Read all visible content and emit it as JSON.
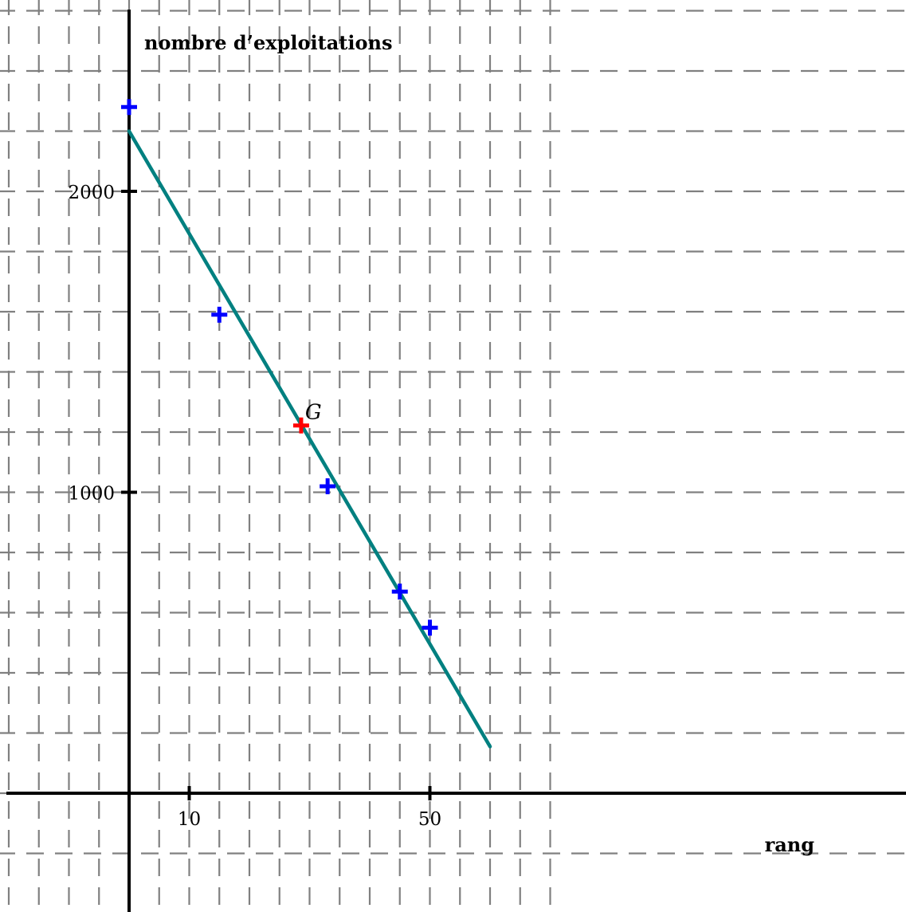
{
  "chart_data": {
    "type": "scatter",
    "xlabel": "rang",
    "ylabel": "nombre d’exploitations",
    "x_ticks": [
      {
        "value": 10,
        "label": "10"
      },
      {
        "value": 50,
        "label": "50"
      }
    ],
    "y_ticks": [
      {
        "value": 1000,
        "label": "1000"
      },
      {
        "value": 2000,
        "label": "2000"
      }
    ],
    "xlim": [
      -10,
      65
    ],
    "ylim": [
      -400,
      2600
    ],
    "grid": true,
    "series": [
      {
        "kind": "points",
        "color": "#0000ff",
        "marker": "plus",
        "points": [
          {
            "x": 0,
            "y": 2280
          },
          {
            "x": 15,
            "y": 1590
          },
          {
            "x": 33,
            "y": 1020
          },
          {
            "x": 45,
            "y": 670
          },
          {
            "x": 50,
            "y": 550
          }
        ]
      },
      {
        "kind": "mean-point",
        "color": "#ff0000",
        "marker": "plus",
        "label": "G",
        "points": [
          {
            "x": 28.6,
            "y": 1222
          }
        ]
      },
      {
        "kind": "regression-line",
        "color": "#008080",
        "points": [
          {
            "x": 0,
            "y": 2200
          },
          {
            "x": 60,
            "y": 155
          }
        ]
      }
    ]
  }
}
